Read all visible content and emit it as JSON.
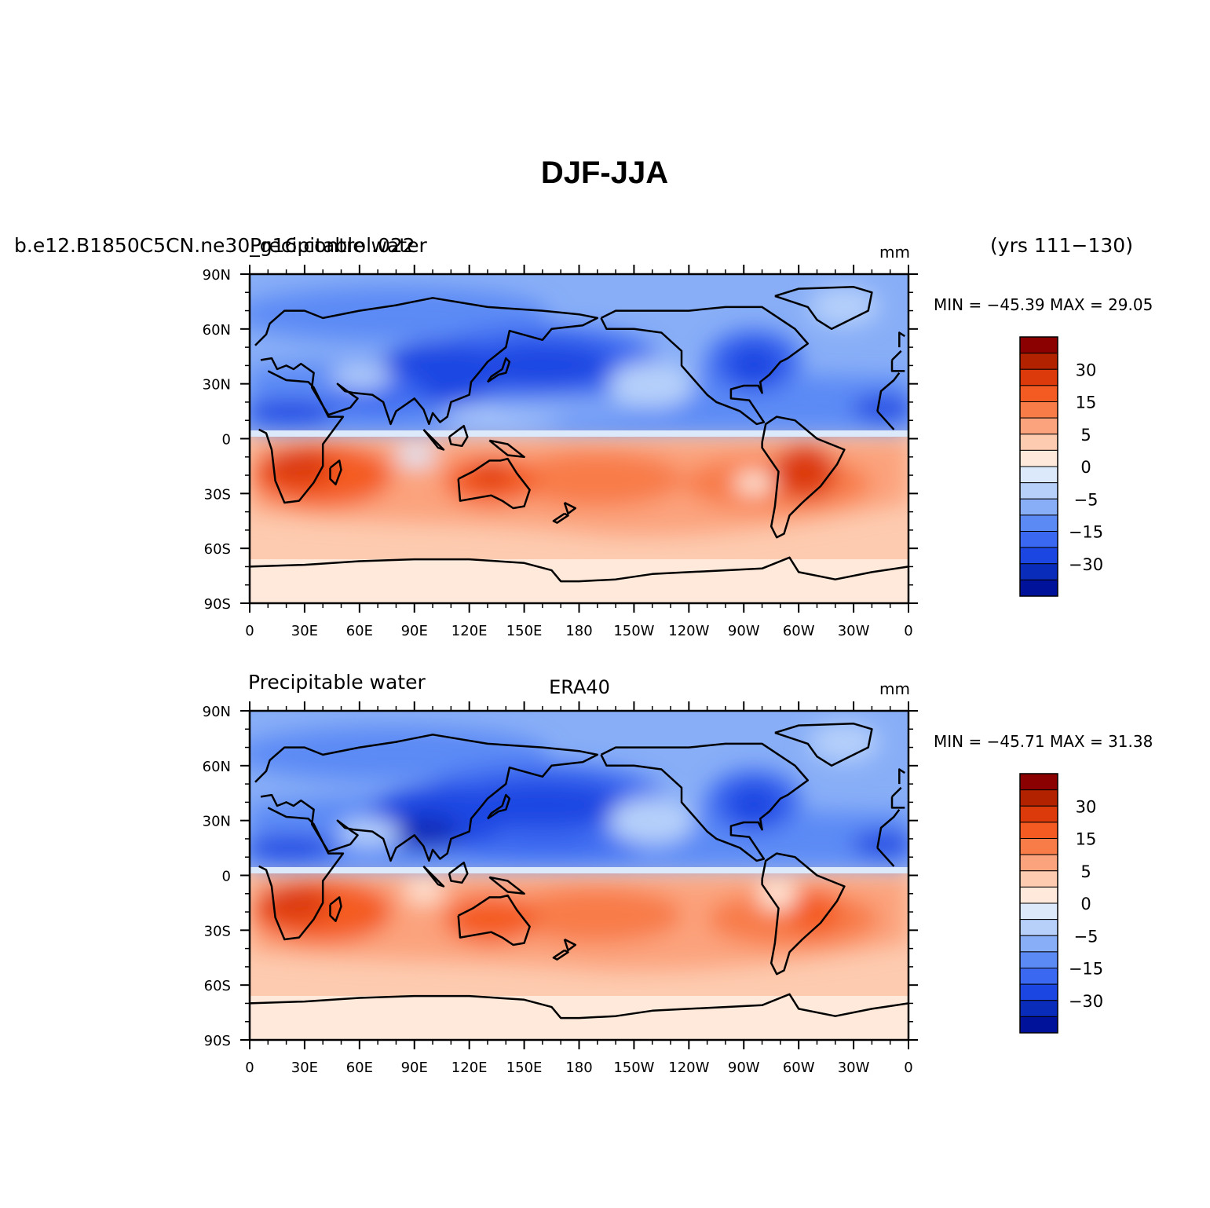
{
  "figure": {
    "title": "DJF-JJA",
    "years": "(yrs 111−130)"
  },
  "colors": {
    "levels": [
      "#8b0000",
      "#b22200",
      "#dd3a0c",
      "#f45b22",
      "#f87c48",
      "#fba37d",
      "#fdcbb0",
      "#fee9da",
      "#dbe9fb",
      "#b6d0fa",
      "#88aef7",
      "#5b8af5",
      "#3a68f0",
      "#1b46e2",
      "#0a2cba",
      "#00119a"
    ],
    "coast": "#000000"
  },
  "legend": {
    "labels": [
      "30",
      "15",
      "5",
      "0",
      "−5",
      "−15",
      "−30"
    ]
  },
  "panels": [
    {
      "left_label": "b.e12.B1850C5CN.ne30_g16.control.022",
      "center_label": "Precipitable water",
      "units": "mm",
      "min_max": "MIN = −45.39 MAX =  29.05"
    },
    {
      "left_label": "Precipitable water",
      "center_label": "ERA40",
      "units": "mm",
      "min_max": "MIN = −45.71 MAX =  31.38"
    }
  ],
  "axes": {
    "lat_ticks": [
      "90N",
      "60N",
      "30N",
      "0",
      "30S",
      "60S",
      "90S"
    ],
    "lon_ticks": [
      "0",
      "30E",
      "60E",
      "90E",
      "120E",
      "150E",
      "180",
      "150W",
      "120W",
      "90W",
      "60W",
      "30W",
      "0"
    ]
  },
  "chart_data": [
    {
      "type": "heatmap",
      "title": "DJF-JJA",
      "variable": "Precipitable water",
      "units": "mm",
      "min": -45.39,
      "max": 29.05,
      "xlim": [
        0,
        360
      ],
      "ylim": [
        -90,
        90
      ],
      "colorbar_levels": [
        -30,
        -15,
        -5,
        0,
        5,
        15,
        30
      ]
    },
    {
      "type": "heatmap",
      "title": "ERA40",
      "variable": "Precipitable water",
      "units": "mm",
      "min": -45.71,
      "max": 31.38,
      "xlim": [
        0,
        360
      ],
      "ylim": [
        -90,
        90
      ],
      "colorbar_levels": [
        -30,
        -15,
        -5,
        0,
        5,
        15,
        30
      ]
    }
  ]
}
